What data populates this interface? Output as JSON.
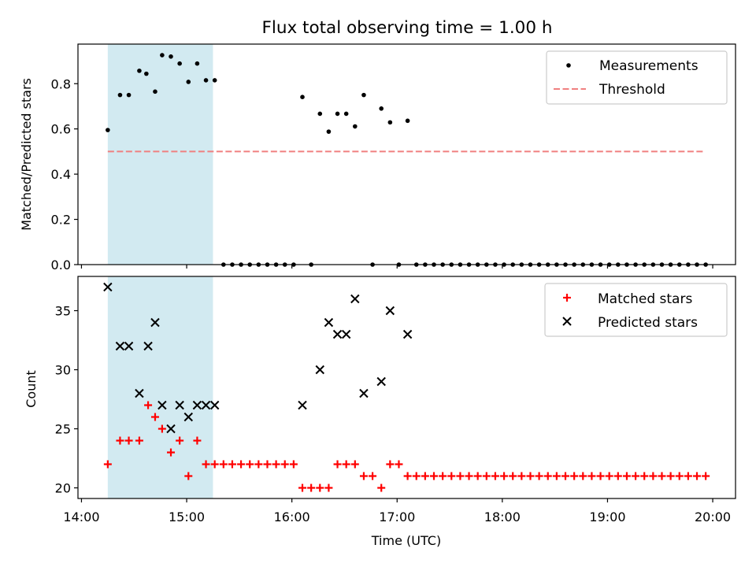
{
  "title": "Flux total observing time = 1.00 h",
  "colors": {
    "highlight": "#add8e6",
    "threshold": "#f08080",
    "matched": "#ff0000",
    "predicted": "#000000",
    "measurement": "#000000"
  },
  "chart_data": [
    {
      "type": "scatter",
      "panel": "top",
      "ylabel": "Matched/Predicted stars",
      "xlim": [
        "13:58",
        "20:13"
      ],
      "ylim": [
        0,
        0.975
      ],
      "yticks": [
        "0.0",
        "0.2",
        "0.4",
        "0.6",
        "0.8"
      ],
      "highlight_span": [
        "14:15",
        "15:15"
      ],
      "legend": {
        "position": "top-right",
        "entries": [
          "Measurements",
          "Threshold"
        ]
      },
      "threshold": {
        "name": "Threshold",
        "value": 0.5,
        "x_range": [
          "14:15",
          "19:55"
        ]
      },
      "measurements": {
        "name": "Measurements",
        "x": [
          "14:15",
          "14:22",
          "14:27",
          "14:33",
          "14:37",
          "14:42",
          "14:46",
          "14:51",
          "14:56",
          "15:01",
          "15:06",
          "15:11",
          "15:16",
          "15:21",
          "15:26",
          "15:31",
          "15:36",
          "15:41",
          "15:46",
          "15:51",
          "15:56",
          "16:01",
          "16:06",
          "16:11",
          "16:16",
          "16:21",
          "16:26",
          "16:31",
          "16:36",
          "16:41",
          "16:46",
          "16:51",
          "16:56",
          "17:01",
          "17:06",
          "17:11",
          "17:16",
          "17:21",
          "17:26",
          "17:31",
          "17:36",
          "17:41",
          "17:46",
          "17:51",
          "17:56",
          "18:01",
          "18:06",
          "18:11",
          "18:16",
          "18:21",
          "18:26",
          "18:31",
          "18:36",
          "18:41",
          "18:46",
          "18:51",
          "18:56",
          "19:01",
          "19:06",
          "19:11",
          "19:16",
          "19:21",
          "19:26",
          "19:31",
          "19:36",
          "19:41",
          "19:46",
          "19:51",
          "19:56"
        ],
        "y": [
          0.595,
          0.75,
          0.75,
          0.857,
          0.844,
          0.765,
          0.926,
          0.92,
          0.889,
          0.808,
          0.889,
          0.815,
          0.815,
          0,
          0,
          0,
          0,
          0,
          0,
          0,
          0,
          0,
          0.741,
          0,
          0.667,
          0.588,
          0.667,
          0.667,
          0.611,
          0.75,
          0,
          0.69,
          0.629,
          0,
          0.636,
          0,
          0,
          0,
          0,
          0,
          0,
          0,
          0,
          0,
          0,
          0,
          0,
          0,
          0,
          0,
          0,
          0,
          0,
          0,
          0,
          0,
          0,
          0,
          0,
          0,
          0,
          0,
          0,
          0,
          0,
          0,
          0,
          0,
          0
        ]
      }
    },
    {
      "type": "scatter",
      "panel": "bottom",
      "xlabel": "Time (UTC)",
      "ylabel": "Count",
      "xlim": [
        "13:58",
        "20:13"
      ],
      "ylim": [
        19.1,
        37.9
      ],
      "yticks": [
        "20",
        "25",
        "30",
        "35"
      ],
      "xticks": [
        "14:00",
        "15:00",
        "16:00",
        "17:00",
        "18:00",
        "19:00",
        "20:00"
      ],
      "highlight_span": [
        "14:15",
        "15:15"
      ],
      "legend": {
        "position": "top-right",
        "entries": [
          "Matched stars",
          "Predicted stars"
        ]
      },
      "matched": {
        "name": "Matched stars",
        "x": [
          "14:15",
          "14:22",
          "14:27",
          "14:33",
          "14:38",
          "14:42",
          "14:46",
          "14:51",
          "14:56",
          "15:01",
          "15:06",
          "15:11",
          "15:16",
          "15:21",
          "15:26",
          "15:31",
          "15:36",
          "15:41",
          "15:46",
          "15:51",
          "15:56",
          "16:01",
          "16:06",
          "16:11",
          "16:16",
          "16:21",
          "16:26",
          "16:31",
          "16:36",
          "16:41",
          "16:46",
          "16:51",
          "16:56",
          "17:01",
          "17:06",
          "17:11",
          "17:16",
          "17:21",
          "17:26",
          "17:31",
          "17:36",
          "17:41",
          "17:46",
          "17:51",
          "17:56",
          "18:01",
          "18:06",
          "18:11",
          "18:16",
          "18:21",
          "18:26",
          "18:31",
          "18:36",
          "18:41",
          "18:46",
          "18:51",
          "18:56",
          "19:01",
          "19:06",
          "19:11",
          "19:16",
          "19:21",
          "19:26",
          "19:31",
          "19:36",
          "19:41",
          "19:46",
          "19:51",
          "19:56"
        ],
        "y": [
          22,
          24,
          24,
          24,
          27,
          26,
          25,
          23,
          24,
          21,
          24,
          22,
          22,
          22,
          22,
          22,
          22,
          22,
          22,
          22,
          22,
          22,
          20,
          20,
          20,
          20,
          22,
          22,
          22,
          21,
          21,
          20,
          22,
          22,
          21,
          21,
          21,
          21,
          21,
          21,
          21,
          21,
          21,
          21,
          21,
          21,
          21,
          21,
          21,
          21,
          21,
          21,
          21,
          21,
          21,
          21,
          21,
          21,
          21,
          21,
          21,
          21,
          21,
          21,
          21,
          21,
          21,
          21,
          21
        ]
      },
      "predicted": {
        "name": "Predicted stars",
        "x": [
          "14:15",
          "14:22",
          "14:27",
          "14:33",
          "14:38",
          "14:42",
          "14:46",
          "14:51",
          "14:56",
          "15:01",
          "15:06",
          "15:11",
          "15:16",
          "16:06",
          "16:16",
          "16:21",
          "16:26",
          "16:31",
          "16:36",
          "16:41",
          "16:51",
          "16:56",
          "17:06"
        ],
        "y": [
          37,
          32,
          32,
          28,
          32,
          34,
          27,
          25,
          27,
          26,
          27,
          27,
          27,
          27,
          30,
          34,
          33,
          33,
          36,
          28,
          29,
          35,
          33
        ]
      }
    }
  ]
}
